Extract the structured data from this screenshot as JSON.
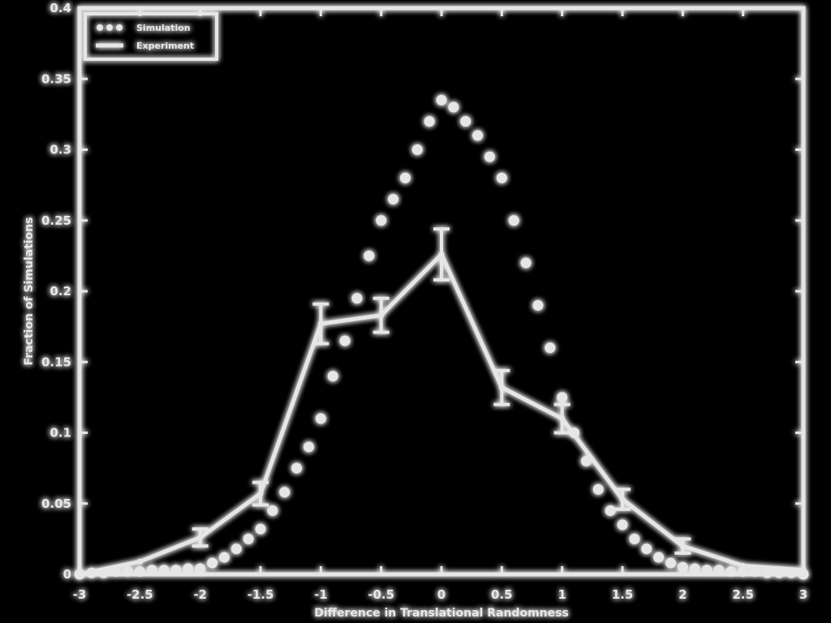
{
  "chart_data": {
    "type": "line",
    "title": "",
    "xlabel": "Difference in Translational Randomness",
    "ylabel": "Fraction of Simulations",
    "xlim": [
      -3,
      3
    ],
    "ylim": [
      0,
      0.4
    ],
    "xticks": [
      -3,
      -2.5,
      -2,
      -1.5,
      -1,
      -0.5,
      0,
      0.5,
      1,
      1.5,
      2,
      2.5,
      3
    ],
    "yticks": [
      0,
      0.05,
      0.1,
      0.15,
      0.2,
      0.25,
      0.3,
      0.35,
      0.4
    ],
    "xtick_labels": [
      "-3",
      "-2.5",
      "-2",
      "-1.5",
      "-1",
      "-0.5",
      "0",
      "0.5",
      "1",
      "1.5",
      "2",
      "2.5",
      "3"
    ],
    "ytick_labels": [
      "0",
      "0.05",
      "0.1",
      "0.15",
      "0.2",
      "0.25",
      "0.3",
      "0.35",
      "0.4"
    ],
    "grid": false,
    "legend_position": "top-left",
    "colors": {
      "background": "#000000",
      "foreground": "#e6e6e6"
    },
    "series": [
      {
        "name": "Simulation",
        "style": "dotted",
        "x": [
          -3,
          -2.9,
          -2.8,
          -2.7,
          -2.6,
          -2.5,
          -2.4,
          -2.3,
          -2.2,
          -2.1,
          -2.0,
          -1.9,
          -1.8,
          -1.7,
          -1.6,
          -1.5,
          -1.4,
          -1.3,
          -1.2,
          -1.1,
          -1.0,
          -0.9,
          -0.8,
          -0.7,
          -0.6,
          -0.5,
          -0.4,
          -0.3,
          -0.2,
          -0.1,
          0.0,
          0.1,
          0.2,
          0.3,
          0.4,
          0.5,
          0.6,
          0.7,
          0.8,
          0.9,
          1.0,
          1.1,
          1.2,
          1.3,
          1.4,
          1.5,
          1.6,
          1.7,
          1.8,
          1.9,
          2.0,
          2.1,
          2.2,
          2.3,
          2.4,
          2.5,
          2.6,
          2.7,
          2.8,
          2.9,
          3.0
        ],
        "y": [
          0.0,
          0.001,
          0.001,
          0.002,
          0.002,
          0.002,
          0.003,
          0.003,
          0.003,
          0.004,
          0.004,
          0.008,
          0.012,
          0.018,
          0.025,
          0.032,
          0.045,
          0.058,
          0.075,
          0.09,
          0.11,
          0.14,
          0.165,
          0.195,
          0.225,
          0.25,
          0.265,
          0.28,
          0.3,
          0.32,
          0.335,
          0.33,
          0.32,
          0.31,
          0.295,
          0.28,
          0.25,
          0.22,
          0.19,
          0.16,
          0.125,
          0.1,
          0.08,
          0.06,
          0.045,
          0.035,
          0.025,
          0.018,
          0.012,
          0.008,
          0.005,
          0.004,
          0.003,
          0.003,
          0.002,
          0.002,
          0.002,
          0.001,
          0.001,
          0.001,
          0.0
        ]
      },
      {
        "name": "Experiment",
        "style": "solid",
        "x": [
          -3,
          -2.5,
          -2,
          -1.5,
          -1,
          -0.5,
          0,
          0.5,
          1,
          1.5,
          2,
          2.5,
          3
        ],
        "y": [
          0.0,
          0.009,
          0.026,
          0.057,
          0.177,
          0.183,
          0.226,
          0.132,
          0.11,
          0.053,
          0.02,
          0.006,
          0.003
        ],
        "error": [
          0.0,
          0.0,
          0.006,
          0.008,
          0.014,
          0.012,
          0.018,
          0.012,
          0.01,
          0.007,
          0.005,
          0.0,
          0.0
        ]
      }
    ]
  }
}
